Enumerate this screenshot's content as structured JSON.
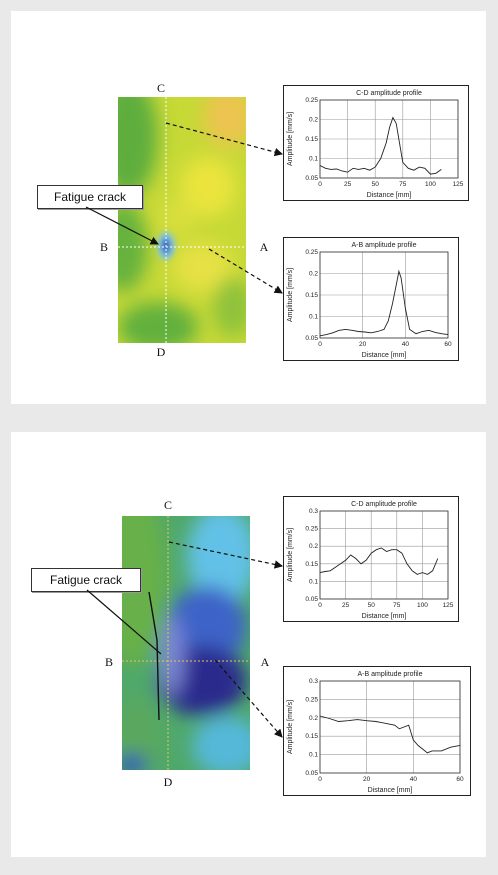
{
  "figures": [
    {
      "crack_label": "Fatigue crack",
      "section_labels": {
        "c": "C",
        "d": "D",
        "b": "B",
        "a": "A"
      },
      "map_colors": {
        "base": "#c6d936",
        "green": "#5fae3c",
        "yellow": "#eae43e",
        "orange": "#ecc44f",
        "blue": "#2f4fb8",
        "light_blue": "#7ec5e8"
      }
    },
    {
      "crack_label": "Fatigue crack",
      "section_labels": {
        "c": "C",
        "d": "D",
        "b": "B",
        "a": "A"
      },
      "map_colors": {
        "base": "#4fa86a",
        "green": "#67b04a",
        "light_blue": "#62c1e6",
        "blue": "#3e63c8",
        "dark_blue": "#2c2a8d"
      }
    }
  ],
  "chart_data": [
    {
      "type": "line",
      "title": "C-D amplitude profile",
      "xlabel": "Distance [mm]",
      "ylabel": "Amplitude [mm/s]",
      "xlim": [
        0,
        125
      ],
      "ylim": [
        0.05,
        0.25
      ],
      "xticks": [
        "0",
        "25",
        "50",
        "75",
        "100",
        "125"
      ],
      "yticks": [
        "0.05",
        "0.1",
        "0.15",
        "0.2",
        "0.25"
      ],
      "grid": true,
      "x": [
        0,
        5,
        10,
        15,
        20,
        25,
        30,
        35,
        40,
        45,
        50,
        55,
        60,
        63,
        66,
        69,
        72,
        75,
        80,
        85,
        90,
        95,
        100,
        105,
        110
      ],
      "y": [
        0.082,
        0.075,
        0.072,
        0.073,
        0.068,
        0.065,
        0.075,
        0.072,
        0.075,
        0.07,
        0.078,
        0.1,
        0.14,
        0.18,
        0.205,
        0.19,
        0.14,
        0.09,
        0.075,
        0.07,
        0.078,
        0.075,
        0.06,
        0.062,
        0.072
      ]
    },
    {
      "type": "line",
      "title": "A-B amplitude profile",
      "xlabel": "Distance [mm]",
      "ylabel": "Amplitude [mm/s]",
      "xlim": [
        0,
        60
      ],
      "ylim": [
        0.05,
        0.25
      ],
      "xticks": [
        "0",
        "20",
        "40",
        "60"
      ],
      "yticks": [
        "0.05",
        "0.1",
        "0.15",
        "0.2",
        "0.25"
      ],
      "grid": true,
      "x": [
        0,
        3,
        6,
        9,
        12,
        15,
        18,
        21,
        24,
        27,
        30,
        32,
        34,
        36,
        37,
        38,
        40,
        42,
        45,
        48,
        51,
        54,
        57,
        60
      ],
      "y": [
        0.055,
        0.058,
        0.062,
        0.068,
        0.07,
        0.068,
        0.065,
        0.064,
        0.062,
        0.065,
        0.07,
        0.09,
        0.13,
        0.18,
        0.205,
        0.19,
        0.12,
        0.07,
        0.06,
        0.065,
        0.068,
        0.063,
        0.06,
        0.058
      ]
    },
    {
      "type": "line",
      "title": "C-D amplitude profile",
      "xlabel": "Distance [mm]",
      "ylabel": "Amplitude [mm/s]",
      "xlim": [
        0,
        125
      ],
      "ylim": [
        0.05,
        0.3
      ],
      "xticks": [
        "0",
        "25",
        "50",
        "75",
        "100",
        "125"
      ],
      "yticks": [
        "0.05",
        "0.1",
        "0.15",
        "0.2",
        "0.25",
        "0.3"
      ],
      "grid": true,
      "x": [
        0,
        5,
        10,
        15,
        20,
        25,
        30,
        35,
        40,
        45,
        50,
        55,
        60,
        65,
        70,
        75,
        80,
        85,
        90,
        95,
        100,
        105,
        110,
        115
      ],
      "y": [
        0.125,
        0.128,
        0.13,
        0.14,
        0.15,
        0.16,
        0.175,
        0.165,
        0.15,
        0.16,
        0.18,
        0.19,
        0.195,
        0.185,
        0.19,
        0.19,
        0.18,
        0.15,
        0.13,
        0.12,
        0.125,
        0.12,
        0.13,
        0.165
      ]
    },
    {
      "type": "line",
      "title": "A-B amplitude profile",
      "xlabel": "Distance [mm]",
      "ylabel": "Amplitude [mm/s]",
      "xlim": [
        0,
        60
      ],
      "ylim": [
        0.05,
        0.3
      ],
      "xticks": [
        "0",
        "20",
        "40",
        "60"
      ],
      "yticks": [
        "0.05",
        "0.1",
        "0.15",
        "0.2",
        "0.25",
        "0.3"
      ],
      "grid": true,
      "x": [
        0,
        4,
        8,
        12,
        16,
        20,
        24,
        28,
        32,
        34,
        36,
        38,
        40,
        42,
        44,
        46,
        48,
        52,
        56,
        60
      ],
      "y": [
        0.205,
        0.198,
        0.19,
        0.192,
        0.195,
        0.192,
        0.19,
        0.185,
        0.18,
        0.17,
        0.175,
        0.18,
        0.14,
        0.125,
        0.115,
        0.105,
        0.11,
        0.11,
        0.12,
        0.125
      ]
    }
  ]
}
